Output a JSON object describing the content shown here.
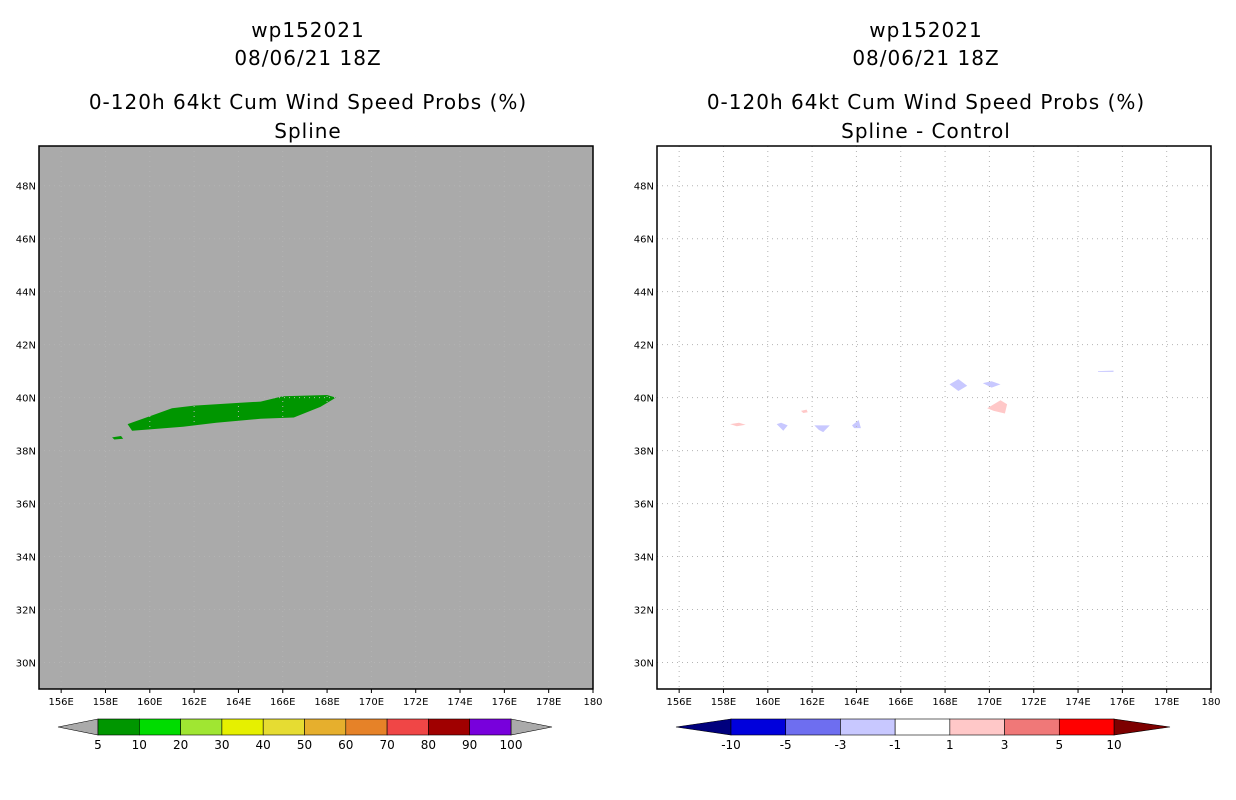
{
  "colors": {
    "left_background": "#aaaaaa",
    "plume_green": "#009600",
    "grid": "#b4b4b4",
    "diff_blue_light": "#c8c8ff",
    "diff_pink_light": "#ffc8c8"
  },
  "chart_data": [
    {
      "id": "left",
      "type": "heatmap",
      "storm_id": "wp152021",
      "datetime": "08/06/21 18Z",
      "title": "0-120h 64kt Cum Wind Speed Probs (%)",
      "subtitle": "Spline",
      "xlim": [
        155,
        180
      ],
      "ylim": [
        29,
        49.5
      ],
      "x_ticks": [
        156,
        158,
        160,
        162,
        164,
        166,
        168,
        170,
        172,
        174,
        176,
        178,
        180
      ],
      "x_tick_labels": [
        "156E",
        "158E",
        "160E",
        "162E",
        "164E",
        "166E",
        "168E",
        "170E",
        "172E",
        "174E",
        "176E",
        "178E",
        "180"
      ],
      "y_ticks": [
        30,
        32,
        34,
        36,
        38,
        40,
        42,
        44,
        46,
        48
      ],
      "y_tick_labels": [
        "30N",
        "32N",
        "34N",
        "36N",
        "38N",
        "40N",
        "42N",
        "44N",
        "46N",
        "48N"
      ],
      "grid": true,
      "regions": [
        {
          "name": "probability-swath-5-10",
          "level": "5-10",
          "color": "#009600",
          "points": [
            [
              159.0,
              39.0
            ],
            [
              160.0,
              39.3
            ],
            [
              161.0,
              39.6
            ],
            [
              162.0,
              39.7
            ],
            [
              163.0,
              39.75
            ],
            [
              164.0,
              39.8
            ],
            [
              165.0,
              39.85
            ],
            [
              166.0,
              40.05
            ],
            [
              168.0,
              40.1
            ],
            [
              168.4,
              40.0
            ],
            [
              167.7,
              39.65
            ],
            [
              166.5,
              39.25
            ],
            [
              165.0,
              39.2
            ],
            [
              163.0,
              39.05
            ],
            [
              161.5,
              38.9
            ],
            [
              160.0,
              38.8
            ],
            [
              159.2,
              38.75
            ]
          ]
        },
        {
          "name": "probability-speck-5-10",
          "level": "5-10",
          "color": "#009600",
          "points": [
            [
              158.3,
              38.5
            ],
            [
              158.7,
              38.55
            ],
            [
              158.8,
              38.45
            ],
            [
              158.4,
              38.42
            ]
          ]
        }
      ],
      "colorbar": {
        "labels": [
          "5",
          "10",
          "20",
          "30",
          "40",
          "50",
          "60",
          "70",
          "80",
          "90",
          "100"
        ],
        "colors": [
          "#009600",
          "#00dc00",
          "#a0e632",
          "#e6f000",
          "#e6dc32",
          "#e6af2d",
          "#e68228",
          "#f04646",
          "#a00000",
          "#7800dc"
        ],
        "under_color": "#aaaaaa",
        "over_color": "#aaaaaa"
      }
    },
    {
      "id": "right",
      "type": "heatmap",
      "storm_id": "wp152021",
      "datetime": "08/06/21 18Z",
      "title": "0-120h 64kt Cum Wind Speed Probs (%)",
      "subtitle": "Spline - Control",
      "xlim": [
        155,
        180
      ],
      "ylim": [
        29,
        49.5
      ],
      "x_ticks": [
        156,
        158,
        160,
        162,
        164,
        166,
        168,
        170,
        172,
        174,
        176,
        178,
        180
      ],
      "x_tick_labels": [
        "156E",
        "158E",
        "160E",
        "162E",
        "164E",
        "166E",
        "168E",
        "170E",
        "172E",
        "174E",
        "176E",
        "178E",
        "180"
      ],
      "y_ticks": [
        30,
        32,
        34,
        36,
        38,
        40,
        42,
        44,
        46,
        48
      ],
      "y_tick_labels": [
        "30N",
        "32N",
        "34N",
        "36N",
        "38N",
        "40N",
        "42N",
        "44N",
        "46N",
        "48N"
      ],
      "grid": true,
      "regions": [
        {
          "name": "diff-patch-158.5",
          "level": "1-3",
          "color": "#ffc8c8",
          "points": [
            [
              158.3,
              39.0
            ],
            [
              158.7,
              39.05
            ],
            [
              159.0,
              38.98
            ],
            [
              158.6,
              38.92
            ]
          ]
        },
        {
          "name": "diff-patch-160.5",
          "level": "-3--1",
          "color": "#c8c8ff",
          "points": [
            [
              160.4,
              39.0
            ],
            [
              160.7,
              38.75
            ],
            [
              160.9,
              38.95
            ],
            [
              160.6,
              39.05
            ]
          ]
        },
        {
          "name": "diff-patch-161.5",
          "level": "1-3",
          "color": "#ffc8c8",
          "points": [
            [
              161.5,
              39.5
            ],
            [
              161.75,
              39.55
            ],
            [
              161.8,
              39.45
            ],
            [
              161.6,
              39.42
            ]
          ]
        },
        {
          "name": "diff-patch-162.4",
          "level": "-3--1",
          "color": "#c8c8ff",
          "points": [
            [
              162.1,
              38.95
            ],
            [
              162.8,
              38.95
            ],
            [
              162.5,
              38.7
            ],
            [
              162.3,
              38.78
            ]
          ]
        },
        {
          "name": "diff-patch-164.0",
          "level": "-3--1",
          "color": "#c8c8ff",
          "points": [
            [
              163.8,
              38.95
            ],
            [
              164.1,
              39.15
            ],
            [
              164.2,
              38.85
            ],
            [
              163.9,
              38.85
            ]
          ]
        },
        {
          "name": "diff-patch-168.7",
          "level": "-3--1",
          "color": "#c8c8ff",
          "points": [
            [
              168.2,
              40.5
            ],
            [
              168.6,
              40.7
            ],
            [
              169.0,
              40.45
            ],
            [
              168.6,
              40.25
            ]
          ]
        },
        {
          "name": "diff-patch-170.1",
          "level": "-3--1",
          "color": "#c8c8ff",
          "points": [
            [
              169.7,
              40.55
            ],
            [
              170.1,
              40.62
            ],
            [
              170.5,
              40.5
            ],
            [
              170.1,
              40.38
            ]
          ]
        },
        {
          "name": "diff-patch-170.5",
          "level": "1-3",
          "color": "#ffc8c8",
          "points": [
            [
              169.9,
              39.6
            ],
            [
              170.5,
              39.9
            ],
            [
              170.8,
              39.75
            ],
            [
              170.7,
              39.4
            ],
            [
              170.2,
              39.5
            ]
          ]
        },
        {
          "name": "diff-patch-175.3",
          "level": "-3--1",
          "color": "#c8c8ff",
          "points": [
            [
              174.9,
              41.0
            ],
            [
              175.6,
              41.02
            ],
            [
              175.6,
              40.97
            ],
            [
              174.9,
              40.97
            ]
          ]
        }
      ],
      "colorbar": {
        "labels": [
          "-10",
          "-5",
          "-3",
          "-1",
          "1",
          "3",
          "5",
          "10"
        ],
        "colors": [
          "#0000dc",
          "#6e6ef0",
          "#c8c8ff",
          "#ffffff",
          "#ffc8c8",
          "#f07878",
          "#ff0000"
        ],
        "under_color": "#00007d",
        "over_color": "#7d0000"
      }
    }
  ]
}
